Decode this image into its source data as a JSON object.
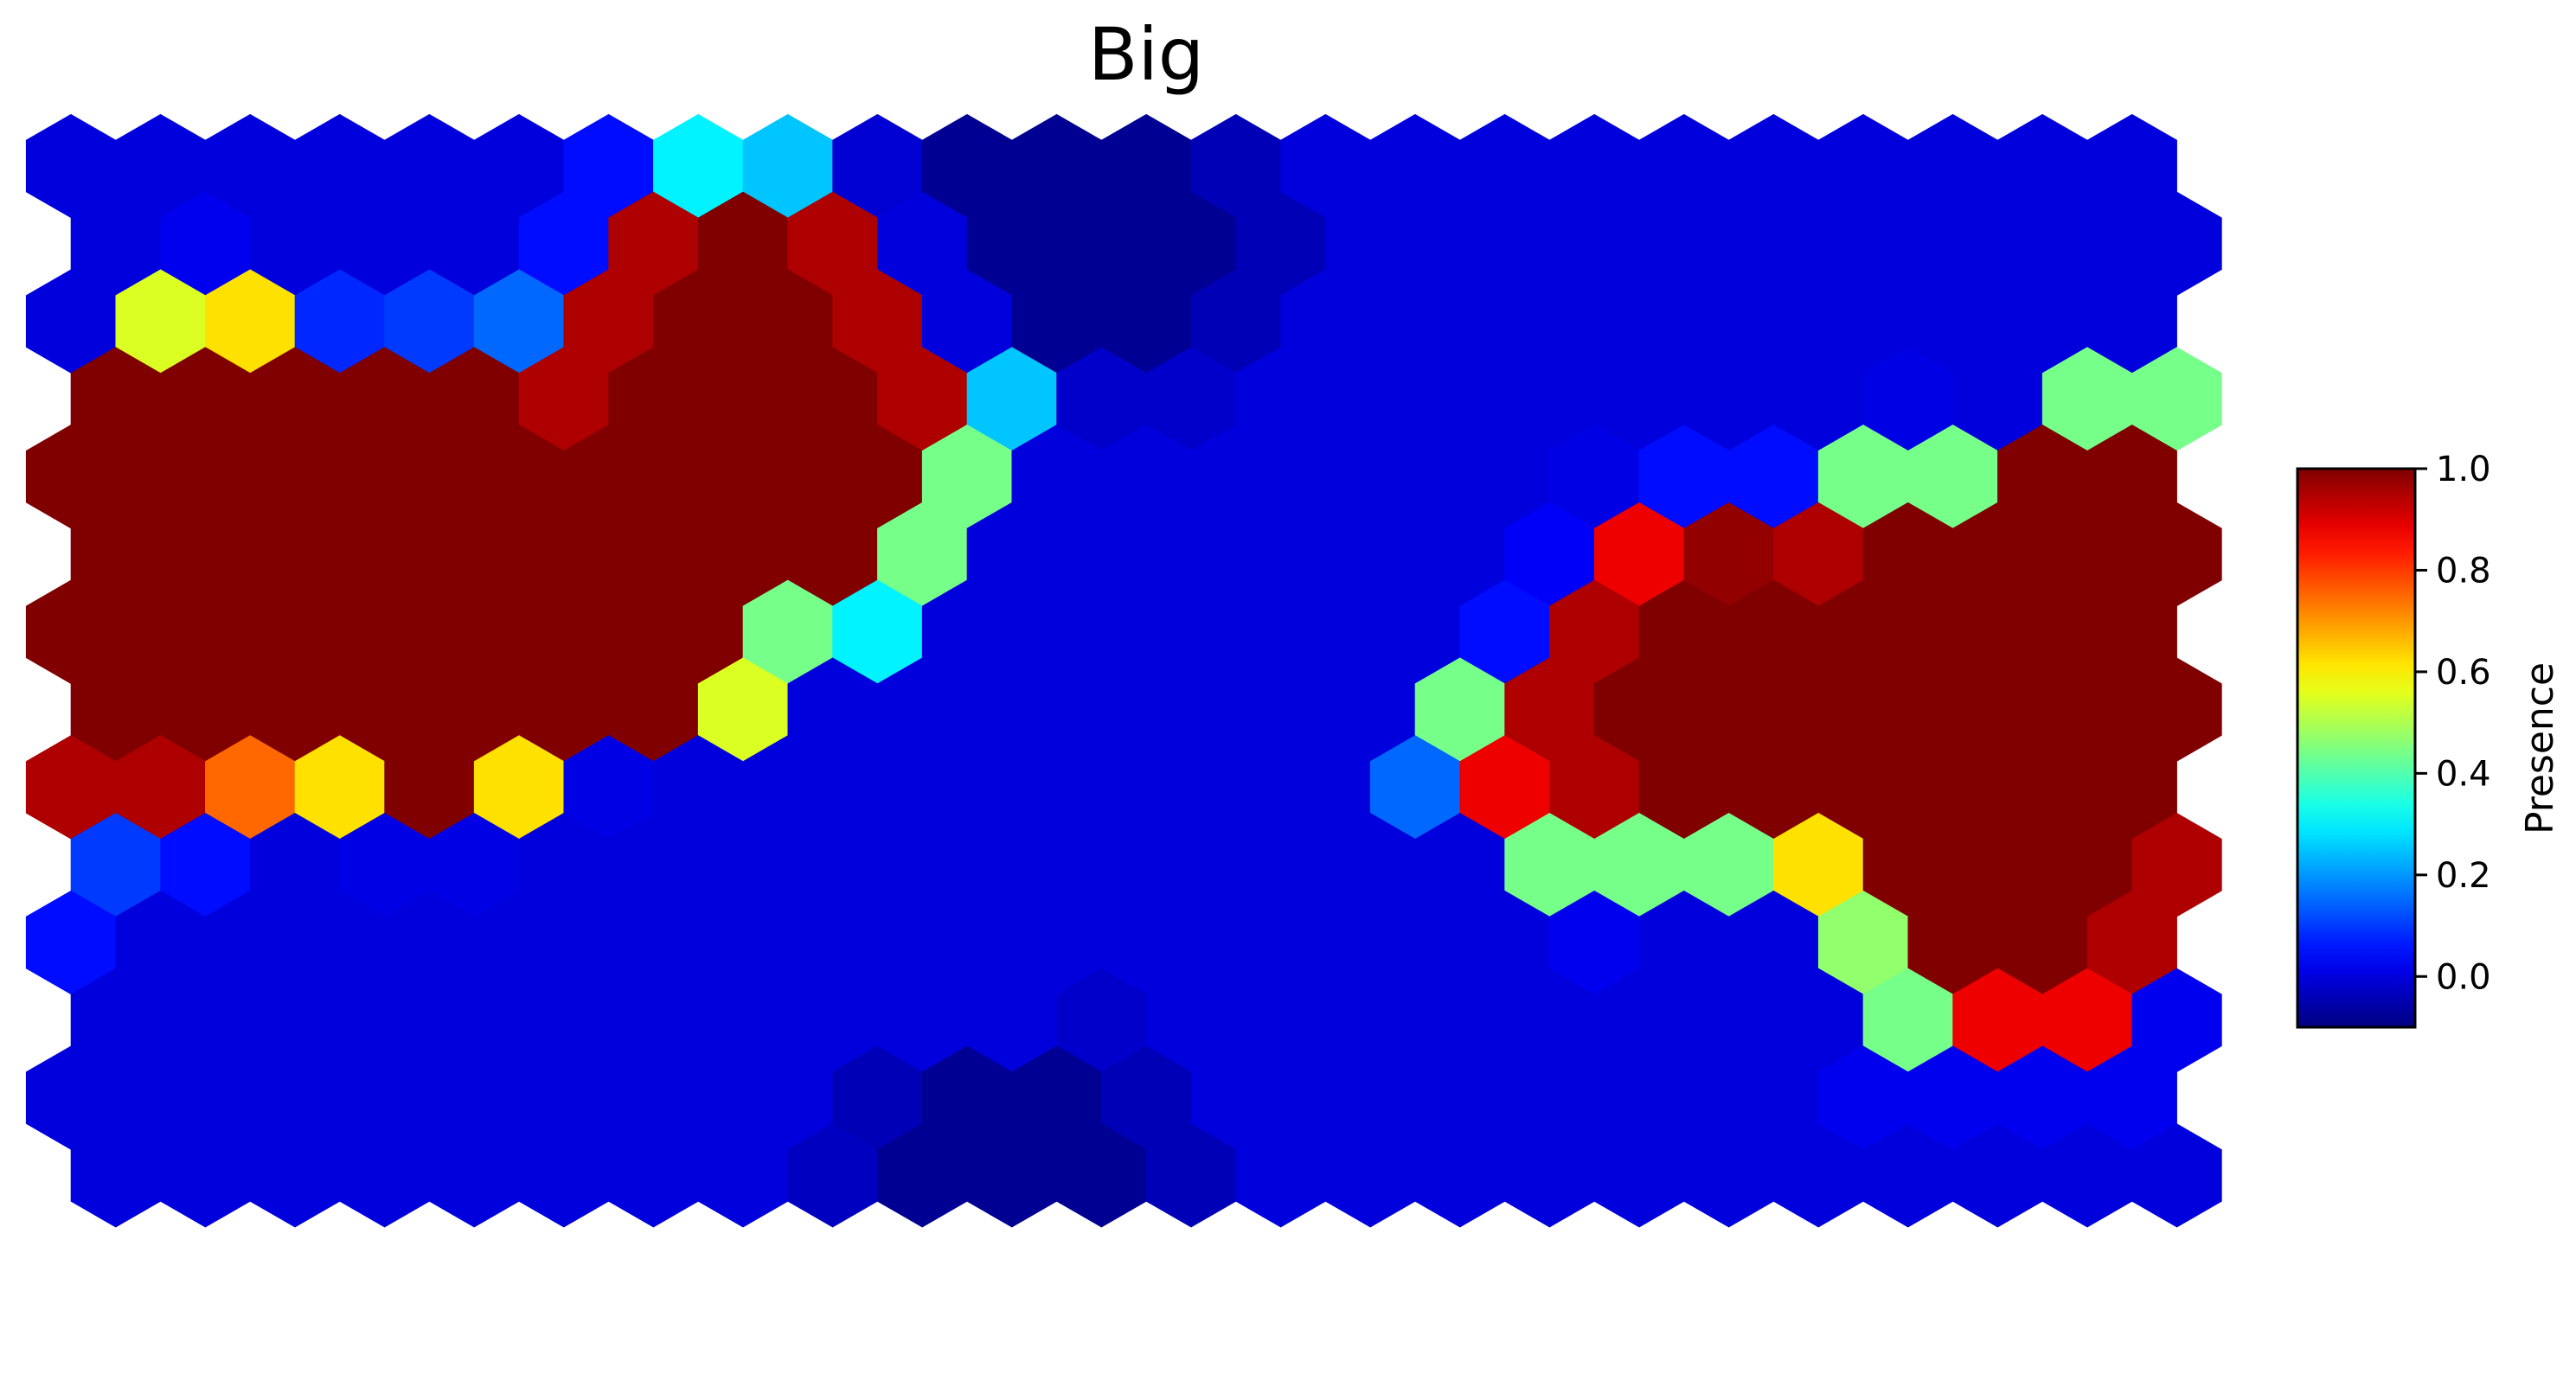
{
  "chart_data": {
    "type": "heatmap",
    "subtype": "hexagonal-grid",
    "title": "Big",
    "colorbar": {
      "label": "Presence",
      "colormap": "jet",
      "vmin": -0.1,
      "vmax": 1.0,
      "ticks": [
        1.0,
        0.8,
        0.6,
        0.4,
        0.2,
        0.0
      ],
      "tick_labels": [
        "1.0",
        "0.8",
        "0.6",
        "0.4",
        "0.2",
        "0.0"
      ],
      "position": "right"
    },
    "grid": false,
    "columns": 24,
    "rows": 14,
    "values": [
      [
        0.0,
        0.0,
        0.0,
        0.0,
        0.0,
        0.0,
        0.05,
        0.3,
        0.25,
        -0.01,
        -0.08,
        -0.08,
        -0.08,
        -0.04,
        0.0,
        0.0,
        0.0,
        0.0,
        0.0,
        0.0,
        0.0,
        0.0,
        0.0,
        0.0
      ],
      [
        0.0,
        0.02,
        0.0,
        0.0,
        0.0,
        0.05,
        0.95,
        1.05,
        0.95,
        0.0,
        -0.08,
        -0.08,
        -0.08,
        -0.04,
        0.0,
        0.0,
        0.0,
        0.0,
        0.0,
        0.0,
        0.0,
        0.0,
        0.0,
        0.0
      ],
      [
        0.0,
        0.55,
        0.62,
        0.08,
        0.1,
        0.15,
        0.95,
        1.05,
        1.05,
        0.95,
        0.0,
        -0.08,
        -0.08,
        -0.04,
        0.0,
        0.0,
        0.0,
        0.0,
        0.0,
        0.0,
        0.0,
        0.0,
        0.0,
        0.0
      ],
      [
        1.05,
        1.05,
        1.02,
        1.02,
        1.02,
        0.95,
        1.05,
        1.05,
        1.05,
        0.95,
        0.25,
        -0.02,
        -0.02,
        0.0,
        0.0,
        0.0,
        0.0,
        0.0,
        0.0,
        0.0,
        0.01,
        0.0,
        0.44,
        0.44
      ],
      [
        1.05,
        1.05,
        1.05,
        1.05,
        1.05,
        1.05,
        1.05,
        1.05,
        1.05,
        1.05,
        0.44,
        0.0,
        0.0,
        0.0,
        0.0,
        0.0,
        0.0,
        0.01,
        0.05,
        0.05,
        0.44,
        0.44,
        1.05,
        1.05
      ],
      [
        1.05,
        1.05,
        1.05,
        1.05,
        1.05,
        1.05,
        1.05,
        1.05,
        1.05,
        0.44,
        0.0,
        0.0,
        0.0,
        0.0,
        0.0,
        0.0,
        0.03,
        0.88,
        0.98,
        0.95,
        1.02,
        1.05,
        1.05,
        1.05
      ],
      [
        1.05,
        1.05,
        1.05,
        1.05,
        1.05,
        1.05,
        1.05,
        1.05,
        0.44,
        0.3,
        0.0,
        0.0,
        0.0,
        0.0,
        0.0,
        0.0,
        0.05,
        0.95,
        1.05,
        1.05,
        1.05,
        1.05,
        1.05,
        1.05
      ],
      [
        1.05,
        1.05,
        1.05,
        1.05,
        1.05,
        1.05,
        1.05,
        0.55,
        0.0,
        0.0,
        0.0,
        0.0,
        0.0,
        0.0,
        0.0,
        0.44,
        0.95,
        1.05,
        1.05,
        1.05,
        1.05,
        1.05,
        1.05,
        1.05
      ],
      [
        0.95,
        0.95,
        0.75,
        0.62,
        1.05,
        0.62,
        0.01,
        0.0,
        0.0,
        0.0,
        0.0,
        0.0,
        0.0,
        0.0,
        0.0,
        0.15,
        0.88,
        0.95,
        1.05,
        1.05,
        1.02,
        1.05,
        1.05,
        1.05
      ],
      [
        0.1,
        0.05,
        0.0,
        0.01,
        0.01,
        0.0,
        0.0,
        0.0,
        0.0,
        0.0,
        0.0,
        0.0,
        0.0,
        0.0,
        0.0,
        0.0,
        0.44,
        0.44,
        0.44,
        0.62,
        1.02,
        1.05,
        1.05,
        0.95
      ],
      [
        0.05,
        0.0,
        0.0,
        0.0,
        0.0,
        0.0,
        0.0,
        0.0,
        0.0,
        0.0,
        0.0,
        0.0,
        0.0,
        0.0,
        0.0,
        0.0,
        0.0,
        0.02,
        0.0,
        0.0,
        0.47,
        1.05,
        1.05,
        0.95
      ],
      [
        0.0,
        0.0,
        0.0,
        0.0,
        0.0,
        0.0,
        0.0,
        0.0,
        0.0,
        0.0,
        0.0,
        -0.02,
        0.0,
        0.0,
        0.0,
        0.0,
        0.0,
        0.0,
        0.0,
        0.0,
        0.44,
        0.88,
        0.88,
        0.02
      ],
      [
        0.0,
        0.0,
        0.0,
        0.0,
        0.0,
        0.0,
        0.0,
        0.0,
        0.0,
        -0.04,
        -0.08,
        -0.08,
        -0.04,
        0.0,
        0.0,
        0.0,
        0.0,
        0.0,
        0.0,
        0.0,
        0.02,
        0.02,
        0.02,
        0.02
      ],
      [
        0.0,
        0.0,
        0.0,
        0.0,
        0.0,
        0.0,
        0.0,
        0.0,
        -0.03,
        -0.08,
        -0.08,
        -0.08,
        -0.04,
        0.0,
        0.0,
        0.0,
        0.0,
        0.0,
        0.0,
        0.0,
        0.0,
        0.0,
        0.0,
        0.0
      ]
    ]
  }
}
